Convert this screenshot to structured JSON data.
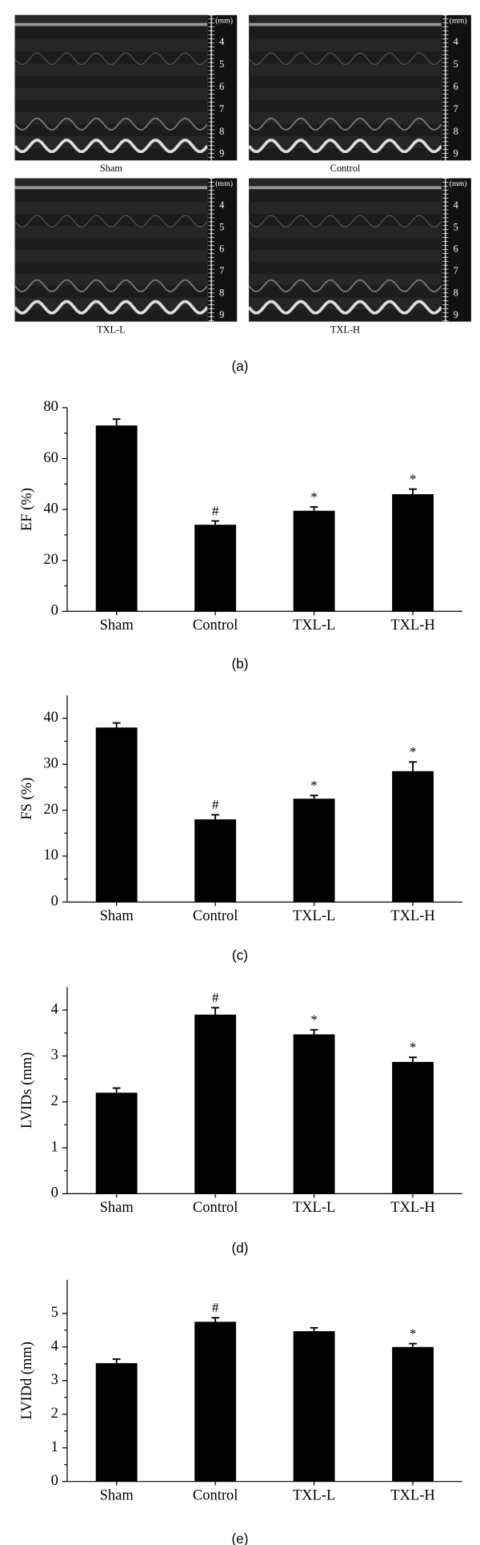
{
  "figure_a": {
    "panels": [
      {
        "label": "Sham",
        "scale_unit": "(mm)",
        "scale_ticks": [
          4,
          5,
          6,
          7,
          8,
          9
        ]
      },
      {
        "label": "Control",
        "scale_unit": "(mm)",
        "scale_ticks": [
          4,
          5,
          6,
          7,
          8,
          9
        ]
      },
      {
        "label": "TXL-L",
        "scale_unit": "(mm)",
        "scale_ticks": [
          4,
          5,
          6,
          7,
          8,
          9
        ]
      },
      {
        "label": "TXL-H",
        "scale_unit": "(mm)",
        "scale_ticks": [
          4,
          5,
          6,
          7,
          8,
          9
        ]
      }
    ],
    "caption": "(a)"
  },
  "chart_data": [
    {
      "type": "bar",
      "caption": "(b)",
      "y_label": "EF (%)",
      "categories": [
        "Sham",
        "Control",
        "TXL-L",
        "TXL-H"
      ],
      "values": [
        73,
        34,
        39.5,
        46
      ],
      "errors": [
        2.5,
        1.5,
        1.5,
        2
      ],
      "significance": [
        null,
        "#",
        "*",
        "*"
      ],
      "color": "#000000",
      "ylim": [
        0,
        80
      ],
      "yticks": [
        0,
        20,
        40,
        60,
        80
      ]
    },
    {
      "type": "bar",
      "caption": "(c)",
      "y_label": "FS (%)",
      "categories": [
        "Sham",
        "Control",
        "TXL-L",
        "TXL-H"
      ],
      "values": [
        38,
        18,
        22.5,
        28.5
      ],
      "errors": [
        1,
        1,
        0.7,
        2
      ],
      "significance": [
        null,
        "#",
        "*",
        "*"
      ],
      "color": "#000000",
      "ylim": [
        0,
        45
      ],
      "yticks": [
        0,
        10,
        20,
        30,
        40
      ]
    },
    {
      "type": "bar",
      "caption": "(d)",
      "y_label": "LVIDs (mm)",
      "categories": [
        "Sham",
        "Control",
        "TXL-L",
        "TXL-H"
      ],
      "values": [
        2.2,
        3.9,
        3.47,
        2.87
      ],
      "errors": [
        0.1,
        0.15,
        0.1,
        0.1
      ],
      "significance": [
        null,
        "#",
        "*",
        "*"
      ],
      "color": "#000000",
      "ylim": [
        0,
        4.5
      ],
      "yticks": [
        0,
        1,
        2,
        3,
        4
      ]
    },
    {
      "type": "bar",
      "caption": "(e)",
      "y_label": "LVIDd (mm)",
      "categories": [
        "Sham",
        "Control",
        "TXL-L",
        "TXL-H"
      ],
      "values": [
        3.52,
        4.75,
        4.47,
        4.0
      ],
      "errors": [
        0.12,
        0.12,
        0.1,
        0.1
      ],
      "significance": [
        null,
        "#",
        null,
        "*"
      ],
      "color": "#000000",
      "ylim": [
        0,
        6
      ],
      "yticks": [
        0,
        1,
        2,
        3,
        4,
        5
      ]
    }
  ]
}
